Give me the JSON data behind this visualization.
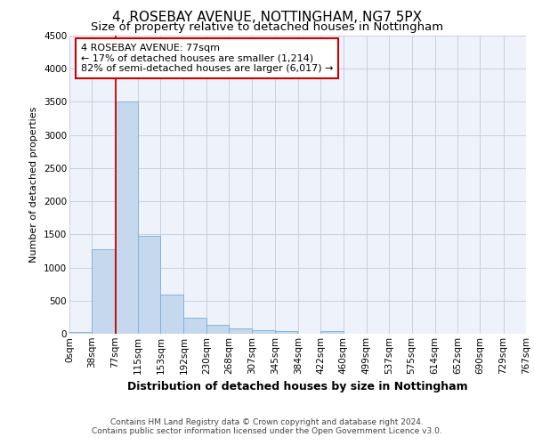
{
  "title1": "4, ROSEBAY AVENUE, NOTTINGHAM, NG7 5PX",
  "title2": "Size of property relative to detached houses in Nottingham",
  "xlabel": "Distribution of detached houses by size in Nottingham",
  "ylabel": "Number of detached properties",
  "bar_color": "#c5d8ee",
  "bar_edge_color": "#7aadd4",
  "background_color": "#eef2fa",
  "grid_color": "#c8d0e0",
  "red_line_color": "#cc0000",
  "red_line_x": 77,
  "annotation_text_line1": "4 ROSEBAY AVENUE: 77sqm",
  "annotation_text_line2": "← 17% of detached houses are smaller (1,214)",
  "annotation_text_line3": "82% of semi-detached houses are larger (6,017) →",
  "bins": [
    0,
    38,
    77,
    115,
    153,
    192,
    230,
    268,
    307,
    345,
    384,
    422,
    460,
    499,
    537,
    575,
    614,
    652,
    690,
    729,
    767
  ],
  "bin_labels": [
    "0sqm",
    "38sqm",
    "77sqm",
    "115sqm",
    "153sqm",
    "192sqm",
    "230sqm",
    "268sqm",
    "307sqm",
    "345sqm",
    "384sqm",
    "422sqm",
    "460sqm",
    "499sqm",
    "537sqm",
    "575sqm",
    "614sqm",
    "652sqm",
    "690sqm",
    "729sqm",
    "767sqm"
  ],
  "values": [
    30,
    1280,
    3510,
    1480,
    590,
    240,
    130,
    80,
    55,
    40,
    5,
    35,
    0,
    0,
    0,
    0,
    0,
    0,
    0,
    0
  ],
  "ylim": [
    0,
    4500
  ],
  "yticks": [
    0,
    500,
    1000,
    1500,
    2000,
    2500,
    3000,
    3500,
    4000,
    4500
  ],
  "footer_line1": "Contains HM Land Registry data © Crown copyright and database right 2024.",
  "footer_line2": "Contains public sector information licensed under the Open Government Licence v3.0.",
  "title1_fontsize": 11,
  "title2_fontsize": 9.5,
  "xlabel_fontsize": 9,
  "ylabel_fontsize": 8,
  "tick_fontsize": 7.5,
  "footer_fontsize": 6.5,
  "ann_fontsize": 8
}
